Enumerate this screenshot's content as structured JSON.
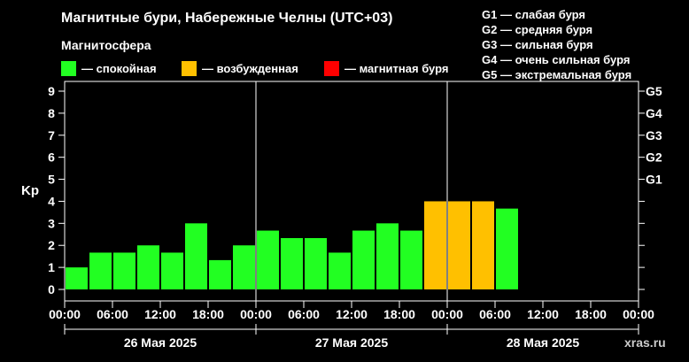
{
  "header": {
    "title": "Магнитные бури, Набережные Челны (UTC+03)",
    "subtitle": "Магнитосфера",
    "legend": [
      {
        "label": "— спокойная",
        "color": "#22ff22"
      },
      {
        "label": "— возбужденная",
        "color": "#ffc000"
      },
      {
        "label": "— магнитная буря",
        "color": "#ff0000"
      }
    ],
    "storm_scale": [
      "G1 — слабая буря",
      "G2 — средняя буря",
      "G3 — сильная буря",
      "G4 — очень сильная буря",
      "G5 — экстремальная буря"
    ]
  },
  "watermark": "xras.ru",
  "chart_data": {
    "type": "bar",
    "ylabel": "Kp",
    "ylim": [
      0,
      9
    ],
    "yticks": [
      "0",
      "1",
      "2",
      "3",
      "4",
      "5",
      "6",
      "7",
      "8",
      "9"
    ],
    "right_ticks": [
      {
        "label": "G1",
        "value": 5
      },
      {
        "label": "G2",
        "value": 6
      },
      {
        "label": "G3",
        "value": 7
      },
      {
        "label": "G4",
        "value": 8
      },
      {
        "label": "G5",
        "value": 9
      }
    ],
    "xticks": [
      "00:00",
      "06:00",
      "12:00",
      "18:00",
      "00:00",
      "06:00",
      "12:00",
      "18:00",
      "00:00",
      "06:00",
      "12:00",
      "18:00",
      "00:00"
    ],
    "days": [
      "26 Мая 2025",
      "27 Мая 2025",
      "28 Мая 2025"
    ],
    "slots": 24,
    "grid": false,
    "colors": {
      "quiet": "#22ff22",
      "active": "#ffc000",
      "storm": "#ff0000"
    },
    "values": [
      1.0,
      1.67,
      1.67,
      2.0,
      1.67,
      3.0,
      1.33,
      2.0,
      2.67,
      2.33,
      2.33,
      1.67,
      2.67,
      3.0,
      2.67,
      4.0,
      4.0,
      4.0,
      3.67
    ]
  }
}
